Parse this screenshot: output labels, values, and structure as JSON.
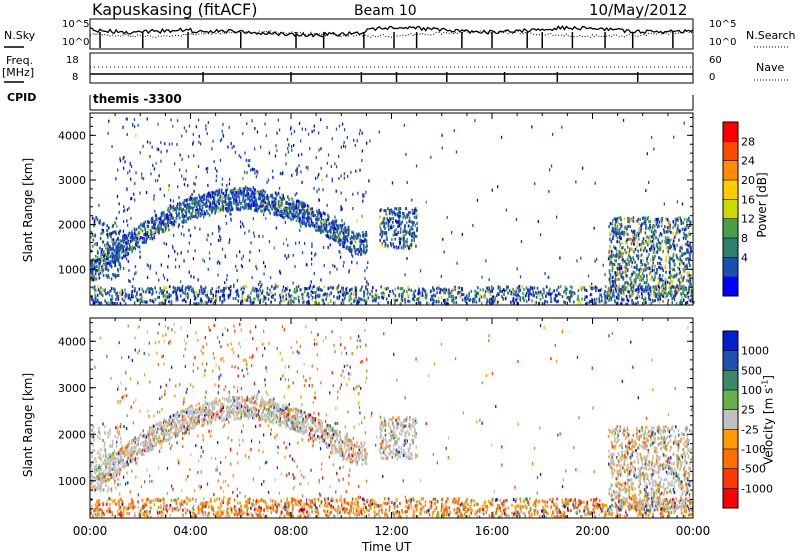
{
  "header": {
    "title": "Kapuskasing (fitACF)",
    "beam": "Beam 10",
    "date": "10/May/2012"
  },
  "top_panels": {
    "nsky_label": "N.Sky",
    "nsearch_label": "N.Search",
    "noise_ticks": [
      "10^5",
      "10^0"
    ],
    "freq_label": "Freq.",
    "freq_unit": "[MHz]",
    "freq_ticks": [
      "18",
      "8"
    ],
    "nave_label": "Nave",
    "nave_ticks": [
      "60",
      "0"
    ],
    "cpid_label": "CPID",
    "cpid_value": "themis -3300"
  },
  "x_axis": {
    "label": "Time UT",
    "ticks": [
      "00:00",
      "04:00",
      "08:00",
      "12:00",
      "16:00",
      "20:00",
      "00:00"
    ]
  },
  "chart_data": [
    {
      "type": "heatmap",
      "panel": "power",
      "ylabel": "Slant Range [km]",
      "ylim": [
        200,
        4500
      ],
      "yticks": [
        "1000",
        "2000",
        "3000",
        "4000"
      ],
      "xlim_hours": [
        0,
        24
      ],
      "colorbar": {
        "label": "Power [dB]",
        "ticks": [
          "28",
          "24",
          "20",
          "16",
          "12",
          "8",
          "4"
        ],
        "colors": [
          "#ff0000",
          "#ff4a00",
          "#ff8c00",
          "#ffcc00",
          "#c8dc00",
          "#4aa04a",
          "#2f7f6f",
          "#1a4fb0",
          "#0000ff"
        ]
      },
      "features": [
        {
          "name": "ionospheric-arc",
          "time_range_h": [
            0,
            11
          ],
          "range_km": [
            1000,
            2700
          ],
          "dominant_dB": 6
        },
        {
          "name": "near-range-echoes",
          "time_range_h": [
            0,
            24
          ],
          "range_km": [
            250,
            600
          ],
          "dominant_dB": 6
        },
        {
          "name": "evening-echoes",
          "time_range_h": [
            20.5,
            24
          ],
          "range_km": [
            400,
            2200
          ],
          "dominant_dB": 10
        }
      ]
    },
    {
      "type": "heatmap",
      "panel": "velocity",
      "ylabel": "Slant Range [km]",
      "ylim": [
        200,
        4500
      ],
      "yticks": [
        "1000",
        "2000",
        "3000",
        "4000"
      ],
      "xlim_hours": [
        0,
        24
      ],
      "colorbar": {
        "label": "Velocity [m s",
        "label_exponent": "-1",
        "label_suffix": "]",
        "ticks": [
          "1000",
          "500",
          "100",
          "25",
          "-25",
          "-100",
          "-500",
          "-1000"
        ],
        "colors": [
          "#0020d0",
          "#2050b0",
          "#3a8a6a",
          "#6ab04a",
          "#c0c0c0",
          "#ff9a00",
          "#ff7000",
          "#ff3a00",
          "#ff0000"
        ]
      },
      "features": [
        {
          "name": "ground-scatter-arc",
          "time_range_h": [
            0,
            11
          ],
          "range_km": [
            1000,
            2700
          ],
          "dominant_velocity": 0
        },
        {
          "name": "near-range-echoes",
          "time_range_h": [
            0,
            24
          ],
          "range_km": [
            250,
            600
          ],
          "dominant_velocity": -100
        },
        {
          "name": "evening-echoes",
          "time_range_h": [
            20.5,
            24
          ],
          "range_km": [
            400,
            2200
          ],
          "dominant_velocity": 0
        }
      ]
    }
  ]
}
